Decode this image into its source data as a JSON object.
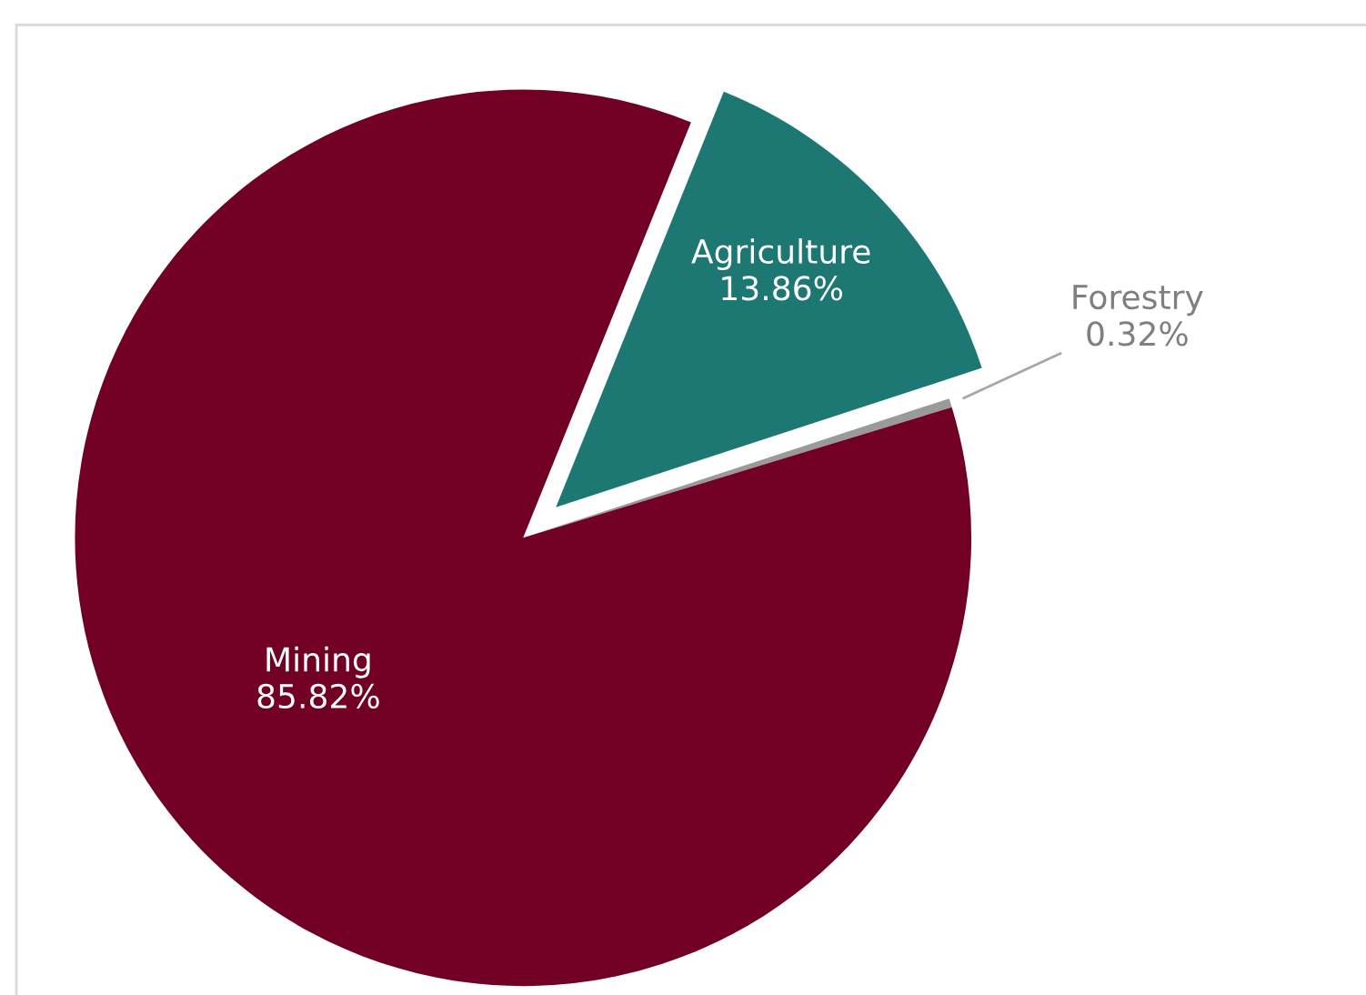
{
  "chart_data": {
    "type": "pie",
    "categories": [
      "Agriculture",
      "Forestry",
      "Mining"
    ],
    "values": [
      13.86,
      0.32,
      85.82
    ],
    "value_labels": [
      "13.86%",
      "0.32%",
      "85.82%"
    ],
    "colors": [
      "#1d7772",
      "#9a9a9a",
      "#720024"
    ],
    "legend": false
  }
}
